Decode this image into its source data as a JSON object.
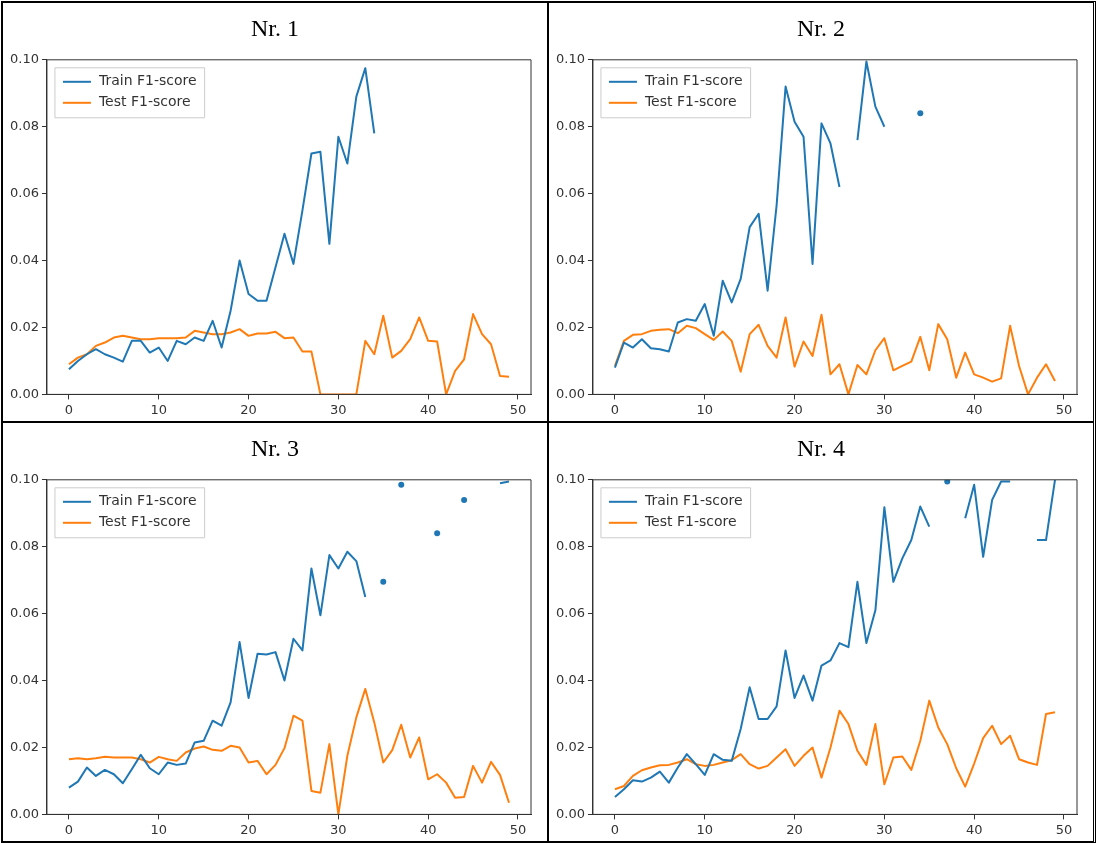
{
  "chart_data": [
    {
      "type": "line",
      "title": "Nr. 1",
      "legend": "top left",
      "marker": "none",
      "xlim": [
        -2.45,
        51.45
      ],
      "xticks": [
        0,
        10,
        20,
        30,
        40,
        50
      ],
      "ylim": [
        0,
        0.1
      ],
      "yticks": [
        {
          "value": 0,
          "label": "0.00"
        },
        {
          "value": 0.02,
          "label": "0.02"
        },
        {
          "value": 0.04,
          "label": "0.04"
        },
        {
          "value": 0.06,
          "label": "0.06"
        },
        {
          "value": 0.08,
          "label": "0.08"
        },
        {
          "value": 0.1,
          "label": "0.10"
        }
      ],
      "x": [
        0,
        1,
        2,
        3,
        4,
        5,
        6,
        7,
        8,
        9,
        10,
        11,
        12,
        13,
        14,
        15,
        16,
        17,
        18,
        19,
        20,
        21,
        22,
        23,
        24,
        25,
        26,
        27,
        28,
        29,
        30,
        31,
        32,
        33,
        34,
        35,
        36,
        37,
        38,
        39,
        40,
        41,
        42,
        43,
        44,
        45,
        46,
        47,
        48,
        49
      ],
      "series": [
        {
          "name": "Train F1-score",
          "color": "#1f77b4",
          "values": [
            0.0075,
            0.01,
            0.012,
            0.0135,
            0.012,
            0.011,
            0.0098,
            0.016,
            0.016,
            0.0125,
            0.014,
            0.01,
            0.016,
            0.015,
            0.017,
            0.016,
            0.022,
            0.014,
            0.025,
            0.04,
            0.03,
            0.028,
            0.028,
            0.038,
            0.048,
            0.039,
            0.055,
            0.072,
            0.0725,
            0.045,
            0.077,
            0.069,
            0.089,
            0.0975,
            0.078,
            null,
            null,
            null,
            null,
            null,
            null,
            null,
            null,
            null,
            null,
            null,
            null,
            null,
            null,
            null
          ]
        },
        {
          "name": "Test F1-score",
          "color": "#ff7f0e",
          "values": [
            0.009,
            0.011,
            0.012,
            0.0145,
            0.0155,
            0.017,
            0.0175,
            0.017,
            0.0165,
            0.0165,
            0.0168,
            0.0168,
            0.0168,
            0.017,
            0.019,
            0.0185,
            0.018,
            0.018,
            0.0185,
            0.0195,
            0.0175,
            0.0182,
            0.0182,
            0.0187,
            0.0168,
            0.017,
            0.0128,
            0.0128,
            0,
            0,
            0,
            0,
            0,
            0.016,
            0.012,
            0.0235,
            0.011,
            0.013,
            0.0165,
            0.023,
            0.016,
            0.0158,
            0,
            0.007,
            0.0105,
            0.024,
            0.018,
            0.015,
            0.0055,
            0.0053
          ]
        }
      ]
    },
    {
      "type": "line",
      "title": "Nr. 2",
      "legend": "top left",
      "marker": "none",
      "xlim": [
        -2.45,
        51.45
      ],
      "xticks": [
        0,
        10,
        20,
        30,
        40,
        50
      ],
      "ylim": [
        0,
        0.1
      ],
      "yticks": [
        {
          "value": 0,
          "label": "0.00"
        },
        {
          "value": 0.02,
          "label": "0.02"
        },
        {
          "value": 0.04,
          "label": "0.04"
        },
        {
          "value": 0.06,
          "label": "0.06"
        },
        {
          "value": 0.08,
          "label": "0.08"
        },
        {
          "value": 0.1,
          "label": "0.10"
        }
      ],
      "x": [
        0,
        1,
        2,
        3,
        4,
        5,
        6,
        7,
        8,
        9,
        10,
        11,
        12,
        13,
        14,
        15,
        16,
        17,
        18,
        19,
        20,
        21,
        22,
        23,
        24,
        25,
        26,
        27,
        28,
        29,
        30,
        31,
        32,
        33,
        34,
        35,
        36,
        37,
        38,
        39,
        40,
        41,
        42,
        43,
        44,
        45,
        46,
        47,
        48,
        49
      ],
      "series": [
        {
          "name": "Train F1-score",
          "color": "#1f77b4",
          "values": [
            0.008,
            0.0155,
            0.014,
            0.0165,
            0.0138,
            0.0135,
            0.0128,
            0.0215,
            0.0225,
            0.022,
            0.027,
            0.0175,
            0.034,
            0.0275,
            0.0345,
            0.05,
            0.054,
            0.031,
            0.0565,
            0.092,
            0.0815,
            0.077,
            0.039,
            0.081,
            0.075,
            0.062,
            null,
            0.076,
            0.0995,
            0.086,
            0.08,
            null,
            null,
            null,
            0.084,
            null,
            null,
            null,
            null,
            null,
            null,
            null,
            null,
            null,
            null,
            null,
            null,
            null,
            null,
            null
          ]
        },
        {
          "name": "Test F1-score",
          "color": "#ff7f0e",
          "values": [
            0.0085,
            0.016,
            0.0178,
            0.018,
            0.019,
            0.0193,
            0.0195,
            0.0183,
            0.0205,
            0.0198,
            0.018,
            0.0163,
            0.0188,
            0.016,
            0.0068,
            0.018,
            0.0208,
            0.0145,
            0.011,
            0.023,
            0.0083,
            0.0158,
            0.0115,
            0.0238,
            0.006,
            0.009,
            0,
            0.0088,
            0.006,
            0.0132,
            0.0168,
            0.0072,
            0.0085,
            0.0098,
            0.0172,
            0.0072,
            0.021,
            0.0165,
            0.005,
            0.0125,
            0.006,
            0.005,
            0.0038,
            0.0048,
            0.0205,
            0.0085,
            0,
            0.005,
            0.009,
            0.004
          ]
        }
      ]
    },
    {
      "type": "line",
      "title": "Nr. 3",
      "legend": "top left",
      "marker": "none",
      "xlim": [
        -2.45,
        51.45
      ],
      "xticks": [
        0,
        10,
        20,
        30,
        40,
        50
      ],
      "ylim": [
        0,
        0.1
      ],
      "yticks": [
        {
          "value": 0,
          "label": "0.00"
        },
        {
          "value": 0.02,
          "label": "0.02"
        },
        {
          "value": 0.04,
          "label": "0.04"
        },
        {
          "value": 0.06,
          "label": "0.06"
        },
        {
          "value": 0.08,
          "label": "0.08"
        },
        {
          "value": 0.1,
          "label": "0.10"
        }
      ],
      "x": [
        0,
        1,
        2,
        3,
        4,
        5,
        6,
        7,
        8,
        9,
        10,
        11,
        12,
        13,
        14,
        15,
        16,
        17,
        18,
        19,
        20,
        21,
        22,
        23,
        24,
        25,
        26,
        27,
        28,
        29,
        30,
        31,
        32,
        33,
        34,
        35,
        36,
        37,
        38,
        39,
        40,
        41,
        42,
        43,
        44,
        45,
        46,
        47,
        48,
        49
      ],
      "series": [
        {
          "name": "Train F1-score",
          "color": "#1f77b4",
          "values": [
            0.008,
            0.0098,
            0.014,
            0.0115,
            0.0133,
            0.012,
            0.0093,
            0.0135,
            0.0178,
            0.0138,
            0.012,
            0.0155,
            0.0148,
            0.0152,
            0.0215,
            0.022,
            0.028,
            0.0265,
            0.0335,
            0.0515,
            0.0348,
            0.048,
            0.0478,
            0.0485,
            0.04,
            0.0525,
            0.049,
            0.0735,
            0.0595,
            0.0775,
            0.0735,
            0.0785,
            0.0757,
            0.065,
            null,
            0.0695,
            null,
            0.0985,
            null,
            null,
            null,
            0.084,
            null,
            null,
            0.094,
            null,
            null,
            null,
            0.099,
            0.0995
          ]
        },
        {
          "name": "Test F1-score",
          "color": "#ff7f0e",
          "values": [
            0.0165,
            0.0168,
            0.0165,
            0.0168,
            0.0172,
            0.017,
            0.017,
            0.017,
            0.0165,
            0.0155,
            0.0172,
            0.0165,
            0.016,
            0.0185,
            0.0197,
            0.0203,
            0.0193,
            0.019,
            0.0205,
            0.02,
            0.0155,
            0.016,
            0.012,
            0.0148,
            0.0198,
            0.0295,
            0.028,
            0.007,
            0.0065,
            0.021,
            0,
            0.0175,
            0.029,
            0.0375,
            0.0275,
            0.0155,
            0.0192,
            0.0268,
            0.017,
            0.023,
            0.0105,
            0.012,
            0.0095,
            0.005,
            0.0052,
            0.0145,
            0.0095,
            0.0157,
            0.0118,
            0.0035
          ]
        }
      ]
    },
    {
      "type": "line",
      "title": "Nr. 4",
      "legend": "top left",
      "marker": "none",
      "xlim": [
        -2.45,
        51.45
      ],
      "xticks": [
        0,
        10,
        20,
        30,
        40,
        50
      ],
      "ylim": [
        0,
        0.1
      ],
      "yticks": [
        {
          "value": 0,
          "label": "0.00"
        },
        {
          "value": 0.02,
          "label": "0.02"
        },
        {
          "value": 0.04,
          "label": "0.04"
        },
        {
          "value": 0.06,
          "label": "0.06"
        },
        {
          "value": 0.08,
          "label": "0.08"
        },
        {
          "value": 0.1,
          "label": "0.10"
        }
      ],
      "x": [
        0,
        1,
        2,
        3,
        4,
        5,
        6,
        7,
        8,
        9,
        10,
        11,
        12,
        13,
        14,
        15,
        16,
        17,
        18,
        19,
        20,
        21,
        22,
        23,
        24,
        25,
        26,
        27,
        28,
        29,
        30,
        31,
        32,
        33,
        34,
        35,
        36,
        37,
        38,
        39,
        40,
        41,
        42,
        43,
        44,
        45,
        46,
        47,
        48,
        49
      ],
      "series": [
        {
          "name": "Train F1-score",
          "color": "#1f77b4",
          "values": [
            0.0052,
            0.0075,
            0.0102,
            0.0098,
            0.011,
            0.0128,
            0.0095,
            0.014,
            0.018,
            0.015,
            0.0118,
            0.018,
            0.0163,
            0.016,
            0.0255,
            0.038,
            0.0285,
            0.0285,
            0.0323,
            0.049,
            0.0348,
            0.0415,
            0.034,
            0.0445,
            0.046,
            0.0512,
            0.05,
            0.0695,
            0.0512,
            0.061,
            0.0918,
            0.0695,
            0.0765,
            0.082,
            0.092,
            0.086,
            null,
            0.0995,
            null,
            0.0885,
            0.0985,
            0.077,
            0.094,
            0.0995,
            0.0995,
            null,
            null,
            0.082,
            0.082,
            0.1
          ]
        },
        {
          "name": "Test F1-score",
          "color": "#ff7f0e",
          "values": [
            0.0075,
            0.0085,
            0.0115,
            0.0132,
            0.014,
            0.0147,
            0.0148,
            0.0155,
            0.0165,
            0.015,
            0.0145,
            0.0148,
            0.0155,
            0.0162,
            0.018,
            0.015,
            0.0137,
            0.0145,
            0.017,
            0.0195,
            0.0145,
            0.0175,
            0.02,
            0.011,
            0.02,
            0.031,
            0.027,
            0.019,
            0.0148,
            0.027,
            0.009,
            0.017,
            0.0173,
            0.0133,
            0.022,
            0.034,
            0.026,
            0.021,
            0.0138,
            0.0083,
            0.0152,
            0.0228,
            0.0265,
            0.021,
            0.0235,
            0.0165,
            0.0155,
            0.0148,
            0.03,
            0.0305
          ]
        }
      ]
    }
  ]
}
